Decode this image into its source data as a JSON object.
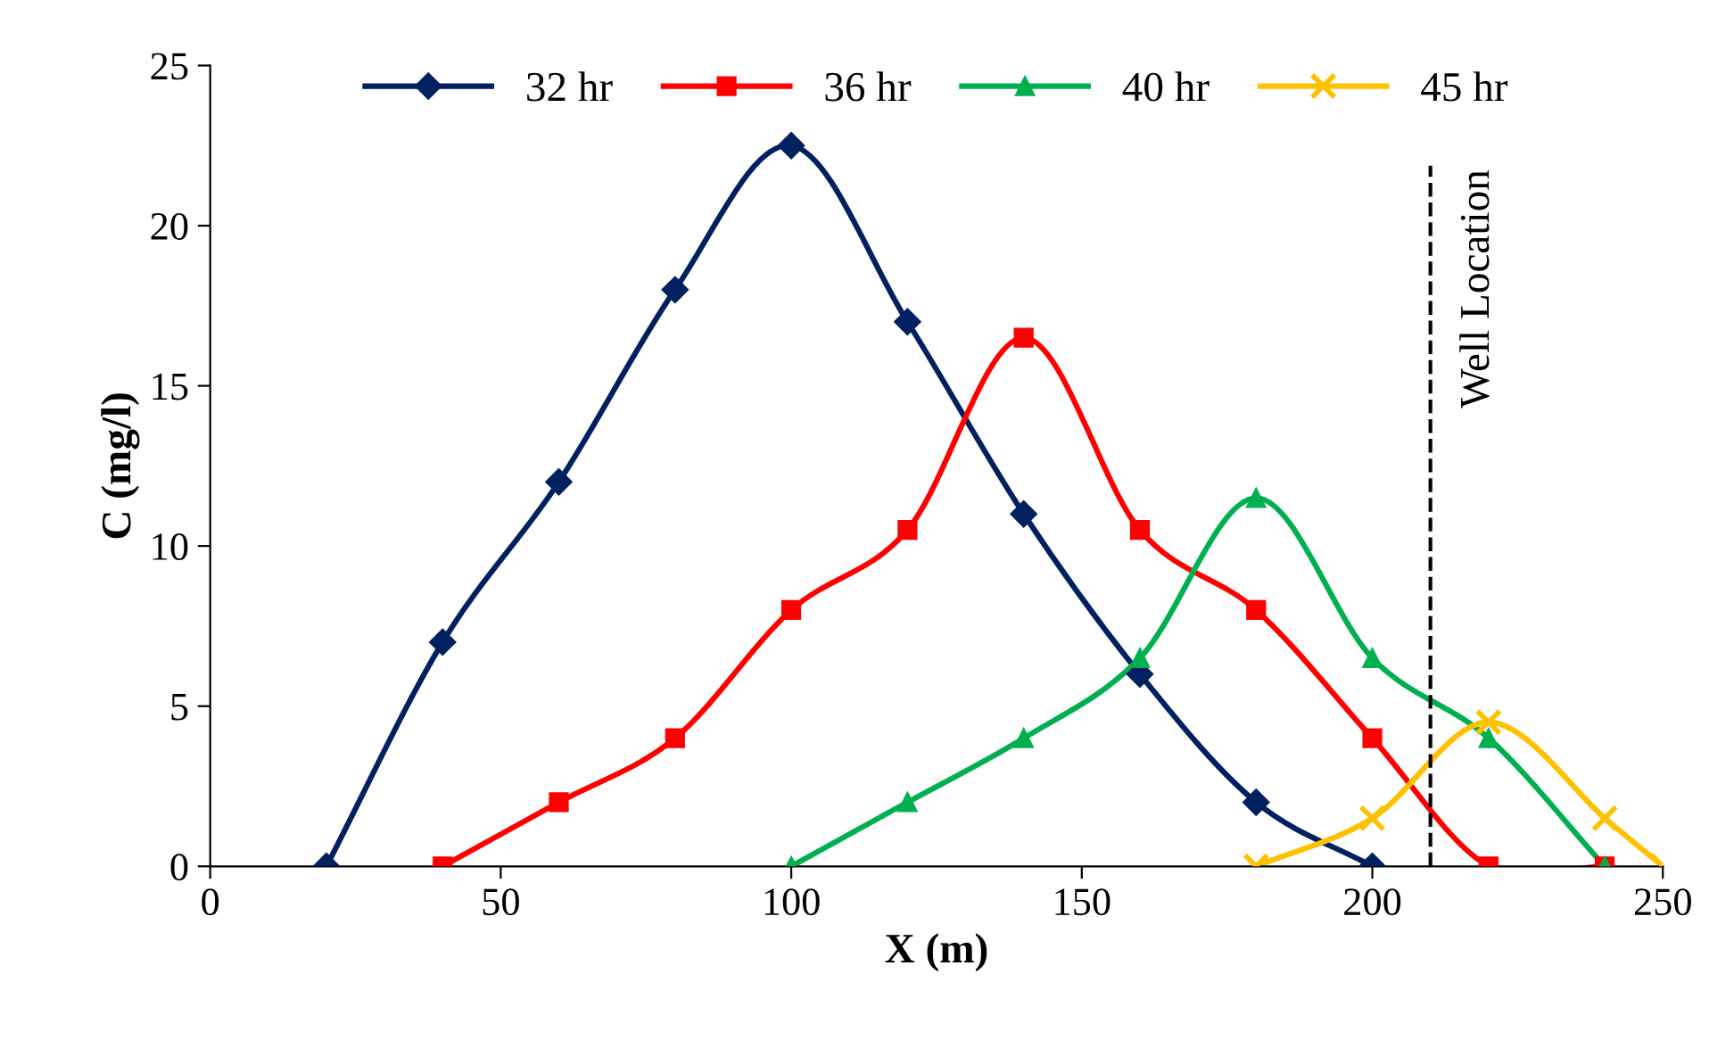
{
  "chart_data": {
    "type": "line",
    "xlabel": "X (m)",
    "ylabel": "C (mg/l)",
    "xlim": [
      0,
      250
    ],
    "xticks": [
      0,
      50,
      100,
      150,
      200,
      250
    ],
    "ylim": [
      0,
      25
    ],
    "yticks": [
      0,
      5,
      10,
      15,
      20,
      25
    ],
    "grid": false,
    "legend": "top",
    "line_style": "solid",
    "series": [
      {
        "name": "32 hr",
        "color": "#002060",
        "marker": "diamond",
        "x": [
          20,
          40,
          60,
          80,
          100,
          120,
          140,
          160,
          180,
          200
        ],
        "values": [
          0,
          7,
          12,
          18,
          22.5,
          17,
          11,
          6,
          2,
          0
        ]
      },
      {
        "name": "36 hr",
        "color": "#ff0000",
        "marker": "square",
        "x": [
          40,
          60,
          80,
          100,
          120,
          140,
          160,
          180,
          200,
          220,
          240
        ],
        "values": [
          0,
          2,
          4,
          8,
          10.5,
          16.5,
          10.5,
          8,
          4,
          0,
          0
        ]
      },
      {
        "name": "40 hr",
        "color": "#00b050",
        "marker": "triangle",
        "x": [
          100,
          120,
          140,
          160,
          180,
          200,
          220,
          240
        ],
        "values": [
          0,
          2,
          4,
          6.5,
          11.5,
          6.5,
          4,
          0
        ]
      },
      {
        "name": "45 hr",
        "color": "#ffc000",
        "marker": "cross",
        "x": [
          180,
          200,
          220,
          240,
          250
        ],
        "values": [
          0,
          1.5,
          4.5,
          1.5,
          0
        ]
      }
    ],
    "ref_lines": [
      {
        "axis": "x",
        "value": 210,
        "label": "Well Location",
        "color": "#000000",
        "line_style": "dashed"
      }
    ]
  }
}
